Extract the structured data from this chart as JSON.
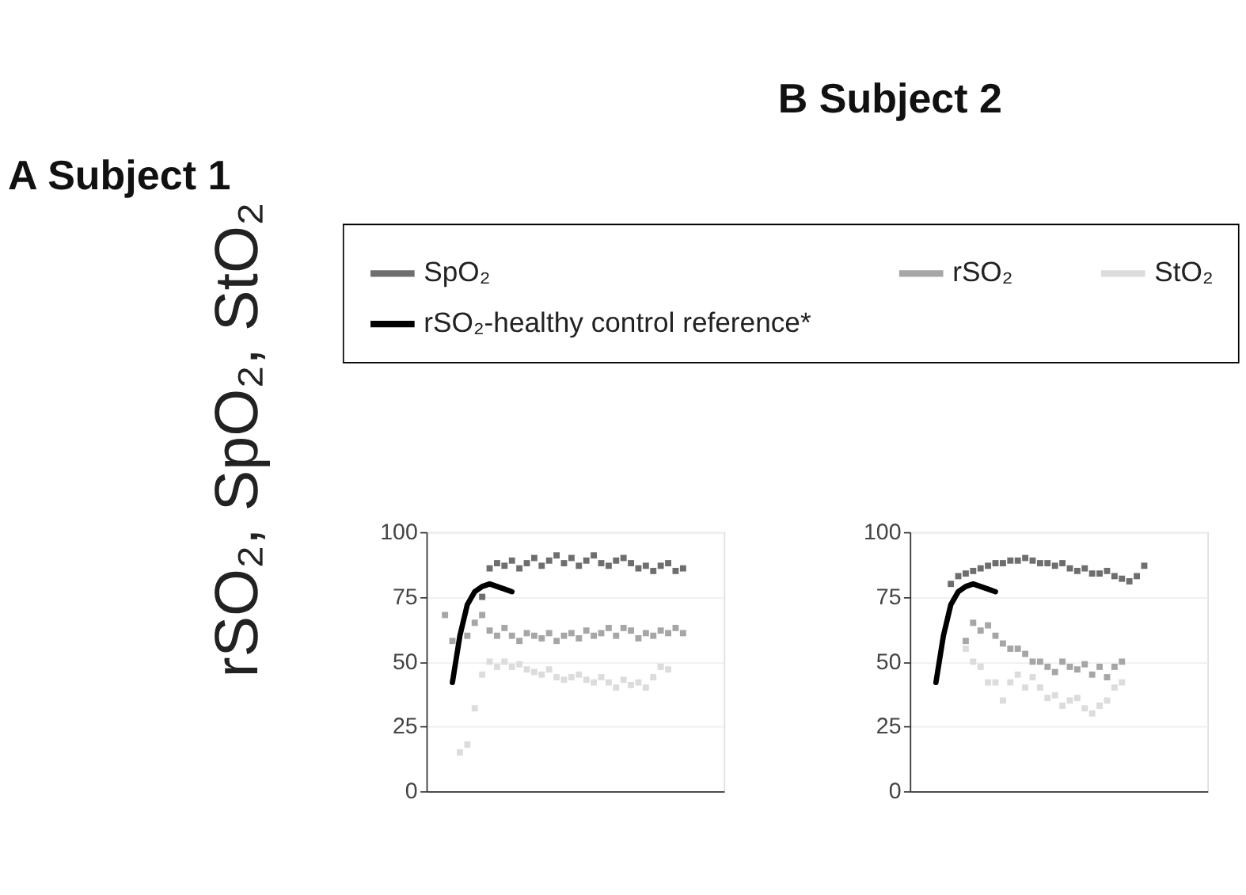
{
  "chart_data": [
    {
      "type": "scatter",
      "title": "Subject 1",
      "annotations": [
        "A"
      ],
      "ylabel": "rSO₂, SpO₂, StO₂",
      "legend": "top",
      "grid": "y",
      "tick_labels": "y",
      "categories": [
        null,
        null,
        null,
        null,
        null,
        null,
        null,
        null,
        null,
        null,
        null,
        null,
        null,
        null,
        null,
        null,
        null,
        null,
        null,
        null,
        null,
        null,
        null,
        null,
        null,
        null,
        null,
        null,
        null,
        null,
        null,
        null,
        null,
        null,
        null,
        null,
        null,
        null,
        null,
        null
      ],
      "ylim": [
        0,
        100
      ],
      "yticks": [
        0,
        25,
        50,
        75,
        100
      ],
      "series": [
        {
          "name": "SpO₂",
          "type": "scatter",
          "marker": "square",
          "color": "#6e6e6e",
          "values": [
            null,
            null,
            null,
            null,
            null,
            null,
            null,
            75,
            86,
            88,
            87,
            89,
            86,
            88,
            90,
            87,
            89,
            91,
            88,
            90,
            87,
            89,
            91,
            88,
            87,
            89,
            90,
            88,
            86,
            87,
            85,
            87,
            88,
            85,
            86,
            null,
            null,
            null,
            null,
            null
          ]
        },
        {
          "name": "rSO₂",
          "type": "scatter",
          "marker": "square",
          "color": "#a6a6a6",
          "values": [
            null,
            null,
            68,
            58,
            null,
            60,
            65,
            68,
            62,
            60,
            63,
            60,
            58,
            61,
            60,
            59,
            61,
            58,
            60,
            61,
            59,
            62,
            60,
            61,
            63,
            60,
            63,
            62,
            59,
            61,
            60,
            62,
            61,
            63,
            61,
            null,
            null,
            null,
            null,
            null
          ]
        },
        {
          "name": "StO₂",
          "type": "scatter",
          "marker": "square",
          "color": "#dcdcdc",
          "values": [
            null,
            null,
            null,
            null,
            15,
            18,
            32,
            45,
            50,
            48,
            50,
            48,
            49,
            47,
            46,
            45,
            47,
            44,
            43,
            44,
            45,
            43,
            42,
            44,
            42,
            40,
            43,
            41,
            42,
            40,
            44,
            48,
            47,
            null,
            null,
            null,
            null,
            null,
            null,
            null
          ]
        },
        {
          "name": "rSO₂-healthy control reference*",
          "type": "line",
          "marker": "none",
          "color": "#000000",
          "values": [
            null,
            null,
            null,
            42,
            60,
            72,
            77,
            79,
            80,
            79,
            78,
            77,
            null,
            null,
            null,
            null,
            null,
            null,
            null,
            null,
            null,
            null,
            null,
            null,
            null,
            null,
            null,
            null,
            null,
            null,
            null,
            null,
            null,
            null,
            null,
            null,
            null,
            null,
            null,
            null
          ]
        }
      ]
    },
    {
      "type": "scatter",
      "title": "Subject 2",
      "annotations": [
        "B"
      ],
      "grid": "y",
      "tick_labels": "y",
      "categories": [
        null,
        null,
        null,
        null,
        null,
        null,
        null,
        null,
        null,
        null,
        null,
        null,
        null,
        null,
        null,
        null,
        null,
        null,
        null,
        null,
        null,
        null,
        null,
        null,
        null,
        null,
        null,
        null,
        null,
        null,
        null,
        null,
        null,
        null,
        null,
        null,
        null,
        null,
        null,
        null
      ],
      "ylim": [
        0,
        100
      ],
      "yticks": [
        0,
        25,
        50,
        75,
        100
      ],
      "series": [
        {
          "type": "scatter",
          "marker": "square",
          "color": "#6e6e6e",
          "values": [
            null,
            null,
            null,
            null,
            null,
            80,
            83,
            84,
            85,
            86,
            87,
            88,
            88,
            89,
            89,
            90,
            89,
            88,
            88,
            87,
            88,
            86,
            85,
            86,
            84,
            84,
            85,
            83,
            82,
            81,
            83,
            87,
            null,
            null,
            null,
            null,
            null,
            null,
            null,
            null
          ]
        },
        {
          "type": "scatter",
          "marker": "square",
          "color": "#a6a6a6",
          "values": [
            null,
            null,
            null,
            null,
            null,
            null,
            null,
            58,
            65,
            62,
            64,
            60,
            57,
            55,
            55,
            53,
            50,
            50,
            48,
            46,
            50,
            48,
            47,
            49,
            45,
            48,
            44,
            48,
            50,
            null,
            null,
            null,
            null,
            null,
            null,
            null,
            null,
            null,
            null,
            null
          ]
        },
        {
          "type": "scatter",
          "marker": "square",
          "color": "#dcdcdc",
          "values": [
            null,
            null,
            null,
            null,
            null,
            null,
            null,
            55,
            50,
            48,
            42,
            42,
            35,
            42,
            45,
            40,
            44,
            40,
            36,
            37,
            33,
            35,
            36,
            32,
            30,
            33,
            35,
            40,
            42,
            null,
            null,
            null,
            null,
            null,
            null,
            null,
            null,
            null,
            null,
            null
          ]
        },
        {
          "type": "line",
          "marker": "none",
          "color": "#000000",
          "values": [
            null,
            null,
            null,
            42,
            60,
            72,
            77,
            79,
            80,
            79,
            78,
            77,
            null,
            null,
            null,
            null,
            null,
            null,
            null,
            null,
            null,
            null,
            null,
            null,
            null,
            null,
            null,
            null,
            null,
            null,
            null,
            null,
            null,
            null,
            null,
            null,
            null,
            null,
            null,
            null
          ]
        }
      ]
    }
  ]
}
